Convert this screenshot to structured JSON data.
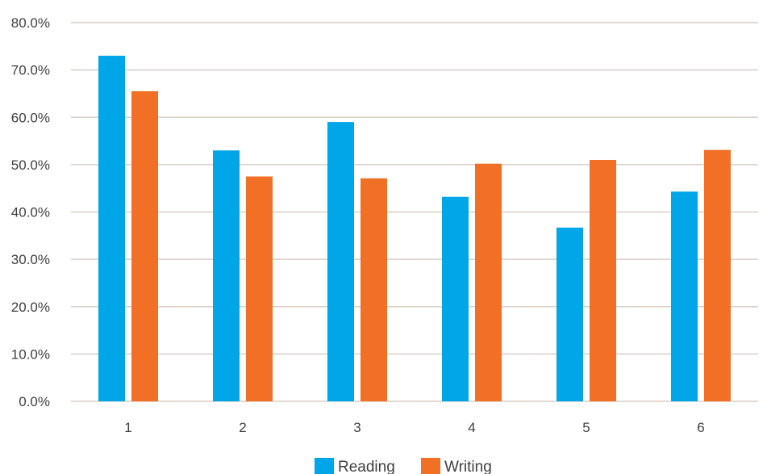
{
  "chart_data": {
    "type": "bar",
    "categories": [
      "1",
      "2",
      "3",
      "4",
      "5",
      "6"
    ],
    "series": [
      {
        "name": "Reading",
        "color": "#00a6e8",
        "values": [
          73.0,
          53.0,
          59.0,
          43.2,
          36.7,
          44.3
        ]
      },
      {
        "name": "Writing",
        "color": "#f26f26",
        "values": [
          65.5,
          47.5,
          47.1,
          50.2,
          51.0,
          53.1
        ]
      }
    ],
    "yticks": [
      "0.0%",
      "10.0%",
      "20.0%",
      "30.0%",
      "40.0%",
      "50.0%",
      "60.0%",
      "70.0%",
      "80.0%"
    ],
    "ylim": [
      0,
      80
    ],
    "grid": true,
    "gridline_color": "#d9cfc6",
    "legend_position": "bottom"
  }
}
